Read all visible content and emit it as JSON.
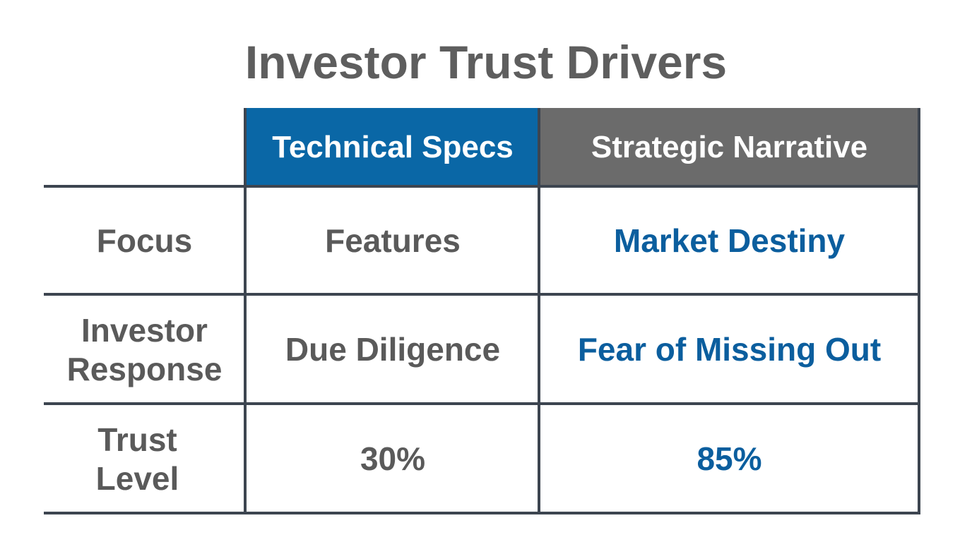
{
  "title": "Investor Trust Drivers",
  "colors": {
    "accent_blue": "#0a67a6",
    "header_gray": "#6b6b6b",
    "grid": "#3d4550",
    "text_gray": "#5a5a5a",
    "text_blue": "#0b5e9e"
  },
  "table": {
    "columns": [
      "Technical Specs",
      "Strategic Narrative"
    ],
    "rows": [
      {
        "label": "Focus",
        "values": [
          "Features",
          "Market Destiny"
        ]
      },
      {
        "label": "Investor Response",
        "values": [
          "Due Diligence",
          "Fear of Missing Out"
        ]
      },
      {
        "label": "Trust Level",
        "values": [
          "30%",
          "85%"
        ]
      }
    ]
  }
}
